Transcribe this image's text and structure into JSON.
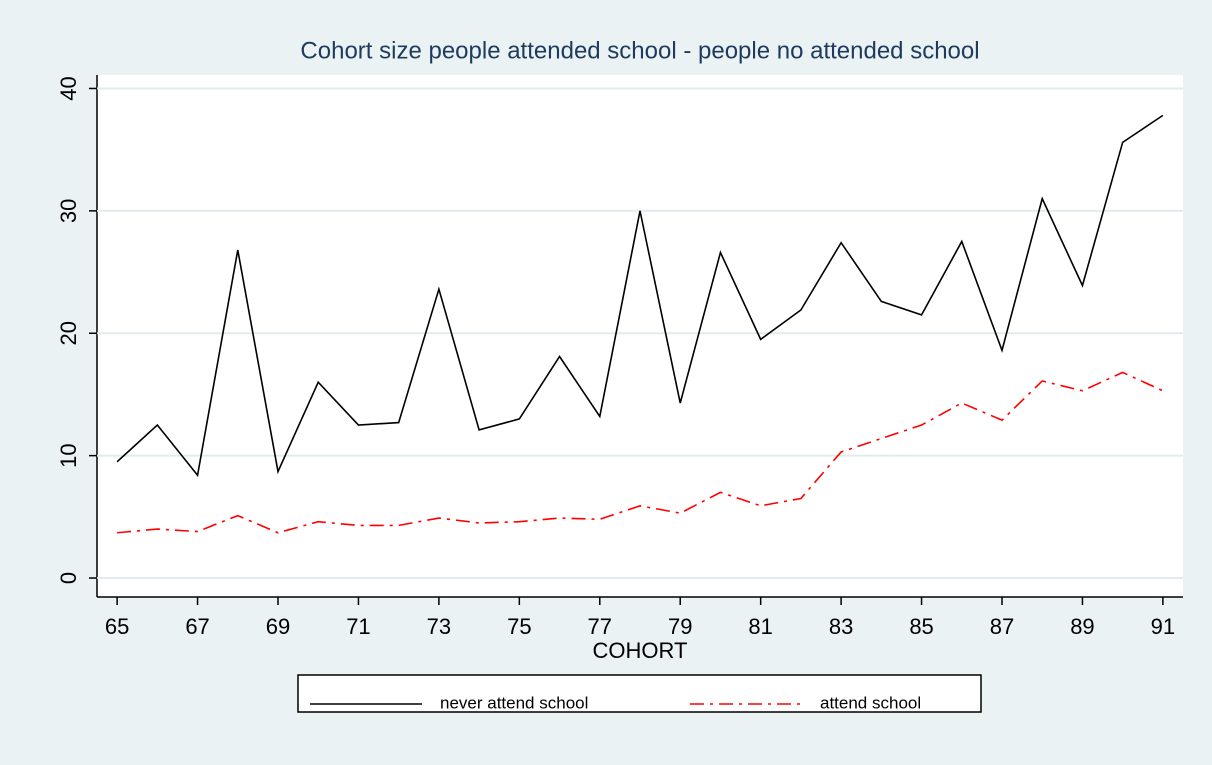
{
  "chart_data": {
    "type": "line",
    "title": "Cohort size people attended school - people no attended school",
    "x_label": "COHORT",
    "x": [
      65,
      66,
      67,
      68,
      69,
      70,
      71,
      72,
      73,
      74,
      75,
      76,
      77,
      78,
      79,
      80,
      81,
      82,
      83,
      84,
      85,
      86,
      87,
      88,
      89,
      90,
      91
    ],
    "series": [
      {
        "name": "never attend school",
        "color": "#000000",
        "dash": "solid",
        "values": [
          9.5,
          12.5,
          8.4,
          26.8,
          8.7,
          16,
          12.5,
          12.7,
          23.6,
          12.1,
          13,
          18.1,
          13.2,
          30,
          14.3,
          26.6,
          19.5,
          21.9,
          27.4,
          22.6,
          21.5,
          27.5,
          18.6,
          31,
          23.9,
          35.6,
          37.8
        ]
      },
      {
        "name": "attend school",
        "color": "#ff0000",
        "dash": "dashdot",
        "values": [
          3.7,
          4,
          3.8,
          5.1,
          3.7,
          4.6,
          4.3,
          4.3,
          4.9,
          4.5,
          4.6,
          4.9,
          4.8,
          5.9,
          5.3,
          7,
          5.9,
          6.5,
          10.3,
          11.4,
          12.5,
          14.3,
          12.9,
          16.1,
          15.3,
          16.8,
          15.3
        ]
      }
    ],
    "xlim": [
      64.5,
      91.5
    ],
    "xticks": [
      65,
      67,
      69,
      71,
      73,
      75,
      77,
      79,
      81,
      83,
      85,
      87,
      89,
      91
    ],
    "ylim": [
      -1.55,
      41.1
    ],
    "yticks": [
      0,
      10,
      20,
      30,
      40
    ],
    "grid": true,
    "legend": "bottom"
  }
}
